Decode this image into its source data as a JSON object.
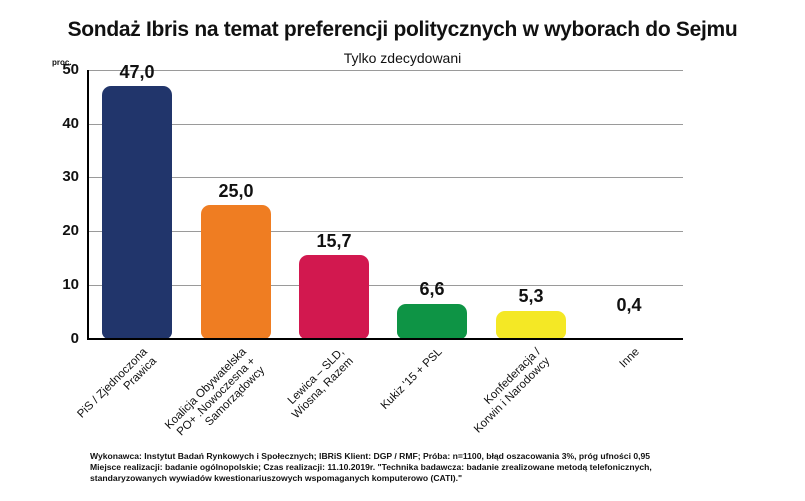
{
  "chart_data": {
    "type": "bar",
    "title": "Sondaż Ibris na temat preferencji politycznych w wyborach do Sejmu",
    "subtitle": "Tylko zdecydowani",
    "xlabel": "",
    "ylabel": "proc.",
    "ylim": [
      0,
      50
    ],
    "yticks": [
      "0",
      "10",
      "20",
      "30",
      "40",
      "50"
    ],
    "grid": true,
    "legend": null,
    "categories": [
      "PiS / Zjednoczona Prawica",
      "Koalicja Obywatelska PO+ .Nowoczesna + Samorządowcy",
      "Lewica – SLD, Wiosna, Razem",
      "Kukiz '15 + PSL",
      "Konfederacja / Korwin i Narodowcy",
      "Inne"
    ],
    "values": [
      47.0,
      25.0,
      15.7,
      6.6,
      5.3,
      0.4
    ],
    "value_labels": [
      "47,0",
      "25,0",
      "15,7",
      "6,6",
      "5,3",
      "0,4"
    ],
    "colors": [
      "#21356b",
      "#ef7d22",
      "#d2184f",
      "#0e9445",
      "#f4e825",
      "#ffffff"
    ]
  },
  "labels": {
    "title": "Sondaż Ibris na temat preferencji politycznych w wyborach do Sejmu",
    "subtitle": "Tylko zdecydowani",
    "unit": "proc.",
    "y": [
      "50",
      "40",
      "30",
      "20",
      "10",
      "0"
    ],
    "x": [
      [
        "PiS / Zjednoczona",
        "Prawica"
      ],
      [
        "Koalicja Obywatelska",
        "PO+ .Nowoczesna +",
        "Samorządowcy"
      ],
      [
        "Lewica – SLD,",
        "Wiosna, Razem"
      ],
      [
        "Kukiz '15 + PSL"
      ],
      [
        "Konfederacja /",
        "Korwin i Narodowcy"
      ],
      [
        "Inne"
      ]
    ]
  },
  "footer": {
    "line1": "Wykonawca: Instytut Badań Rynkowych i Społecznych; IBRiS Klient: DGP / RMF; Próba: n=1100, błąd oszacowania 3%, próg ufności 0,95",
    "line2": "Miejsce realizacji: badanie ogólnopolskie; Czas realizacji: 11.10.2019r. \"Technika badawcza: badanie zrealizowane metodą telefonicznych,",
    "line3": "standaryzowanych wywiadów kwestionariuszowych wspomaganych komputerowo (CATI).\""
  }
}
